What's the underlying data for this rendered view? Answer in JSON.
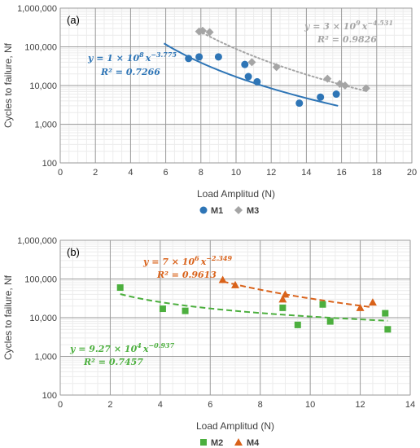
{
  "chart_data": [
    {
      "type": "scatter",
      "panel_label": "(a)",
      "xlabel": "Load Amplitud (N)",
      "ylabel": "Cycles to failure, Nf",
      "xlim": [
        0,
        20
      ],
      "ylim": [
        100,
        1000000
      ],
      "yscale": "log",
      "x_ticks": [
        "0",
        "2",
        "4",
        "6",
        "8",
        "10",
        "12",
        "14",
        "16",
        "18",
        "20"
      ],
      "y_ticks": [
        "100",
        "1,000",
        "10,000",
        "100,000",
        "1,000,000"
      ],
      "grid": true,
      "legend_position": "bottom",
      "series": [
        {
          "name": "M1",
          "marker": "circle",
          "color": "#2e75b6",
          "x": [
            7.3,
            7.9,
            9.0,
            10.5,
            10.7,
            11.2,
            13.6,
            14.8,
            15.7
          ],
          "y": [
            50000,
            55000,
            55000,
            35000,
            17000,
            12500,
            3500,
            5000,
            6000
          ],
          "trend": {
            "coef": 100000000,
            "exp": -3.775,
            "x_range": [
              5.9,
              15.8
            ],
            "style": "solid",
            "eq_y": "y = 1 × 10",
            "eq_sup_coef": "8",
            "eq_x": "x",
            "eq_sup_exp": "−3.775",
            "r2_label": "R² = 0.7266"
          }
        },
        {
          "name": "M3",
          "marker": "diamond",
          "color": "#a5a5a5",
          "x": [
            7.9,
            8.1,
            8.5,
            10.9,
            12.3,
            15.2,
            15.9,
            16.2,
            17.4
          ],
          "y": [
            250000,
            260000,
            240000,
            40000,
            30000,
            15000,
            11000,
            10000,
            8500
          ],
          "trend": {
            "coef": 3000000000,
            "exp": -4.531,
            "x_range": [
              7.9,
              17.4
            ],
            "style": "dotted",
            "eq_y": "y = 3 × 10",
            "eq_sup_coef": "9",
            "eq_x": "x",
            "eq_sup_exp": "−4.531",
            "r2_label": "R² = 0.9826"
          }
        }
      ]
    },
    {
      "type": "scatter",
      "panel_label": "(b)",
      "xlabel": "Load Amplitud (N)",
      "ylabel": "Cycles to failure, Nf",
      "xlim": [
        0,
        14
      ],
      "ylim": [
        100,
        1000000
      ],
      "yscale": "log",
      "x_ticks": [
        "0",
        "2",
        "4",
        "6",
        "8",
        "10",
        "12",
        "14"
      ],
      "y_ticks": [
        "100",
        "1,000",
        "10,000",
        "100,000",
        "1,000,000"
      ],
      "grid": true,
      "legend_position": "bottom",
      "series": [
        {
          "name": "M2",
          "marker": "square",
          "color": "#4caf3e",
          "x": [
            2.4,
            4.1,
            5.0,
            8.9,
            9.5,
            10.5,
            10.8,
            13.0,
            13.1
          ],
          "y": [
            60000,
            17000,
            15000,
            18000,
            6500,
            22000,
            8000,
            13000,
            5000
          ],
          "trend": {
            "coef": 92700,
            "exp": -0.937,
            "x_range": [
              2.4,
              13.1
            ],
            "style": "dashed",
            "eq_y": "y = 9.27 × 10",
            "eq_sup_coef": "4",
            "eq_x": "x",
            "eq_sup_exp": "−0.937",
            "r2_label": "R² = 0.7457"
          }
        },
        {
          "name": "M4",
          "marker": "triangle",
          "color": "#d9621a",
          "x": [
            6.5,
            7.0,
            8.9,
            9.0,
            12.0,
            12.5
          ],
          "y": [
            95000,
            70000,
            30000,
            40000,
            18000,
            25000
          ],
          "trend": {
            "coef": 7000000,
            "exp": -2.349,
            "x_range": [
              6.5,
              12.5
            ],
            "style": "dashed",
            "eq_y": "y = 7 × 10",
            "eq_sup_coef": "6",
            "eq_x": "x",
            "eq_sup_exp": "−2.349",
            "r2_label": "R² = 0.9613"
          }
        }
      ]
    }
  ]
}
